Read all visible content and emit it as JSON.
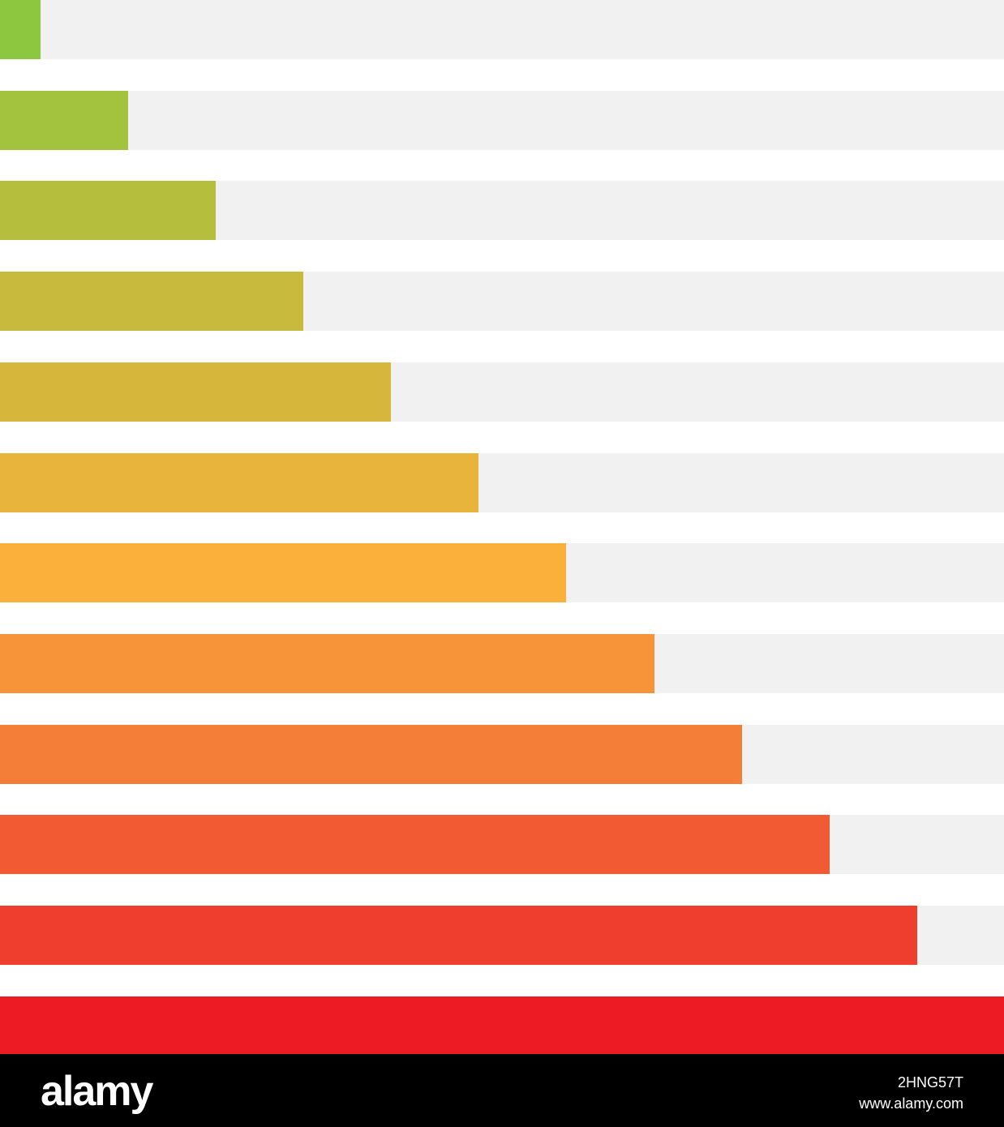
{
  "chart_data": {
    "type": "bar",
    "orientation": "horizontal",
    "title": "",
    "xlabel": "",
    "ylabel": "",
    "xlim": [
      0,
      12
    ],
    "grid": false,
    "legend": "none",
    "track_color": "#f1f1f1",
    "values": [
      0.48,
      1.53,
      2.58,
      3.63,
      4.67,
      5.72,
      6.77,
      7.82,
      8.87,
      9.92,
      10.96,
      12
    ],
    "colors": [
      "#8dc63f",
      "#a3c33e",
      "#b5be3d",
      "#c7ba3c",
      "#d6b73b",
      "#e8b43b",
      "#fbb03b",
      "#f7943a",
      "#f47d37",
      "#f15a32",
      "#ef3d2e",
      "#ed1c24"
    ]
  },
  "footer": {
    "brand": "alamy",
    "image_id": "2HNG57T",
    "url": "www.alamy.com"
  }
}
